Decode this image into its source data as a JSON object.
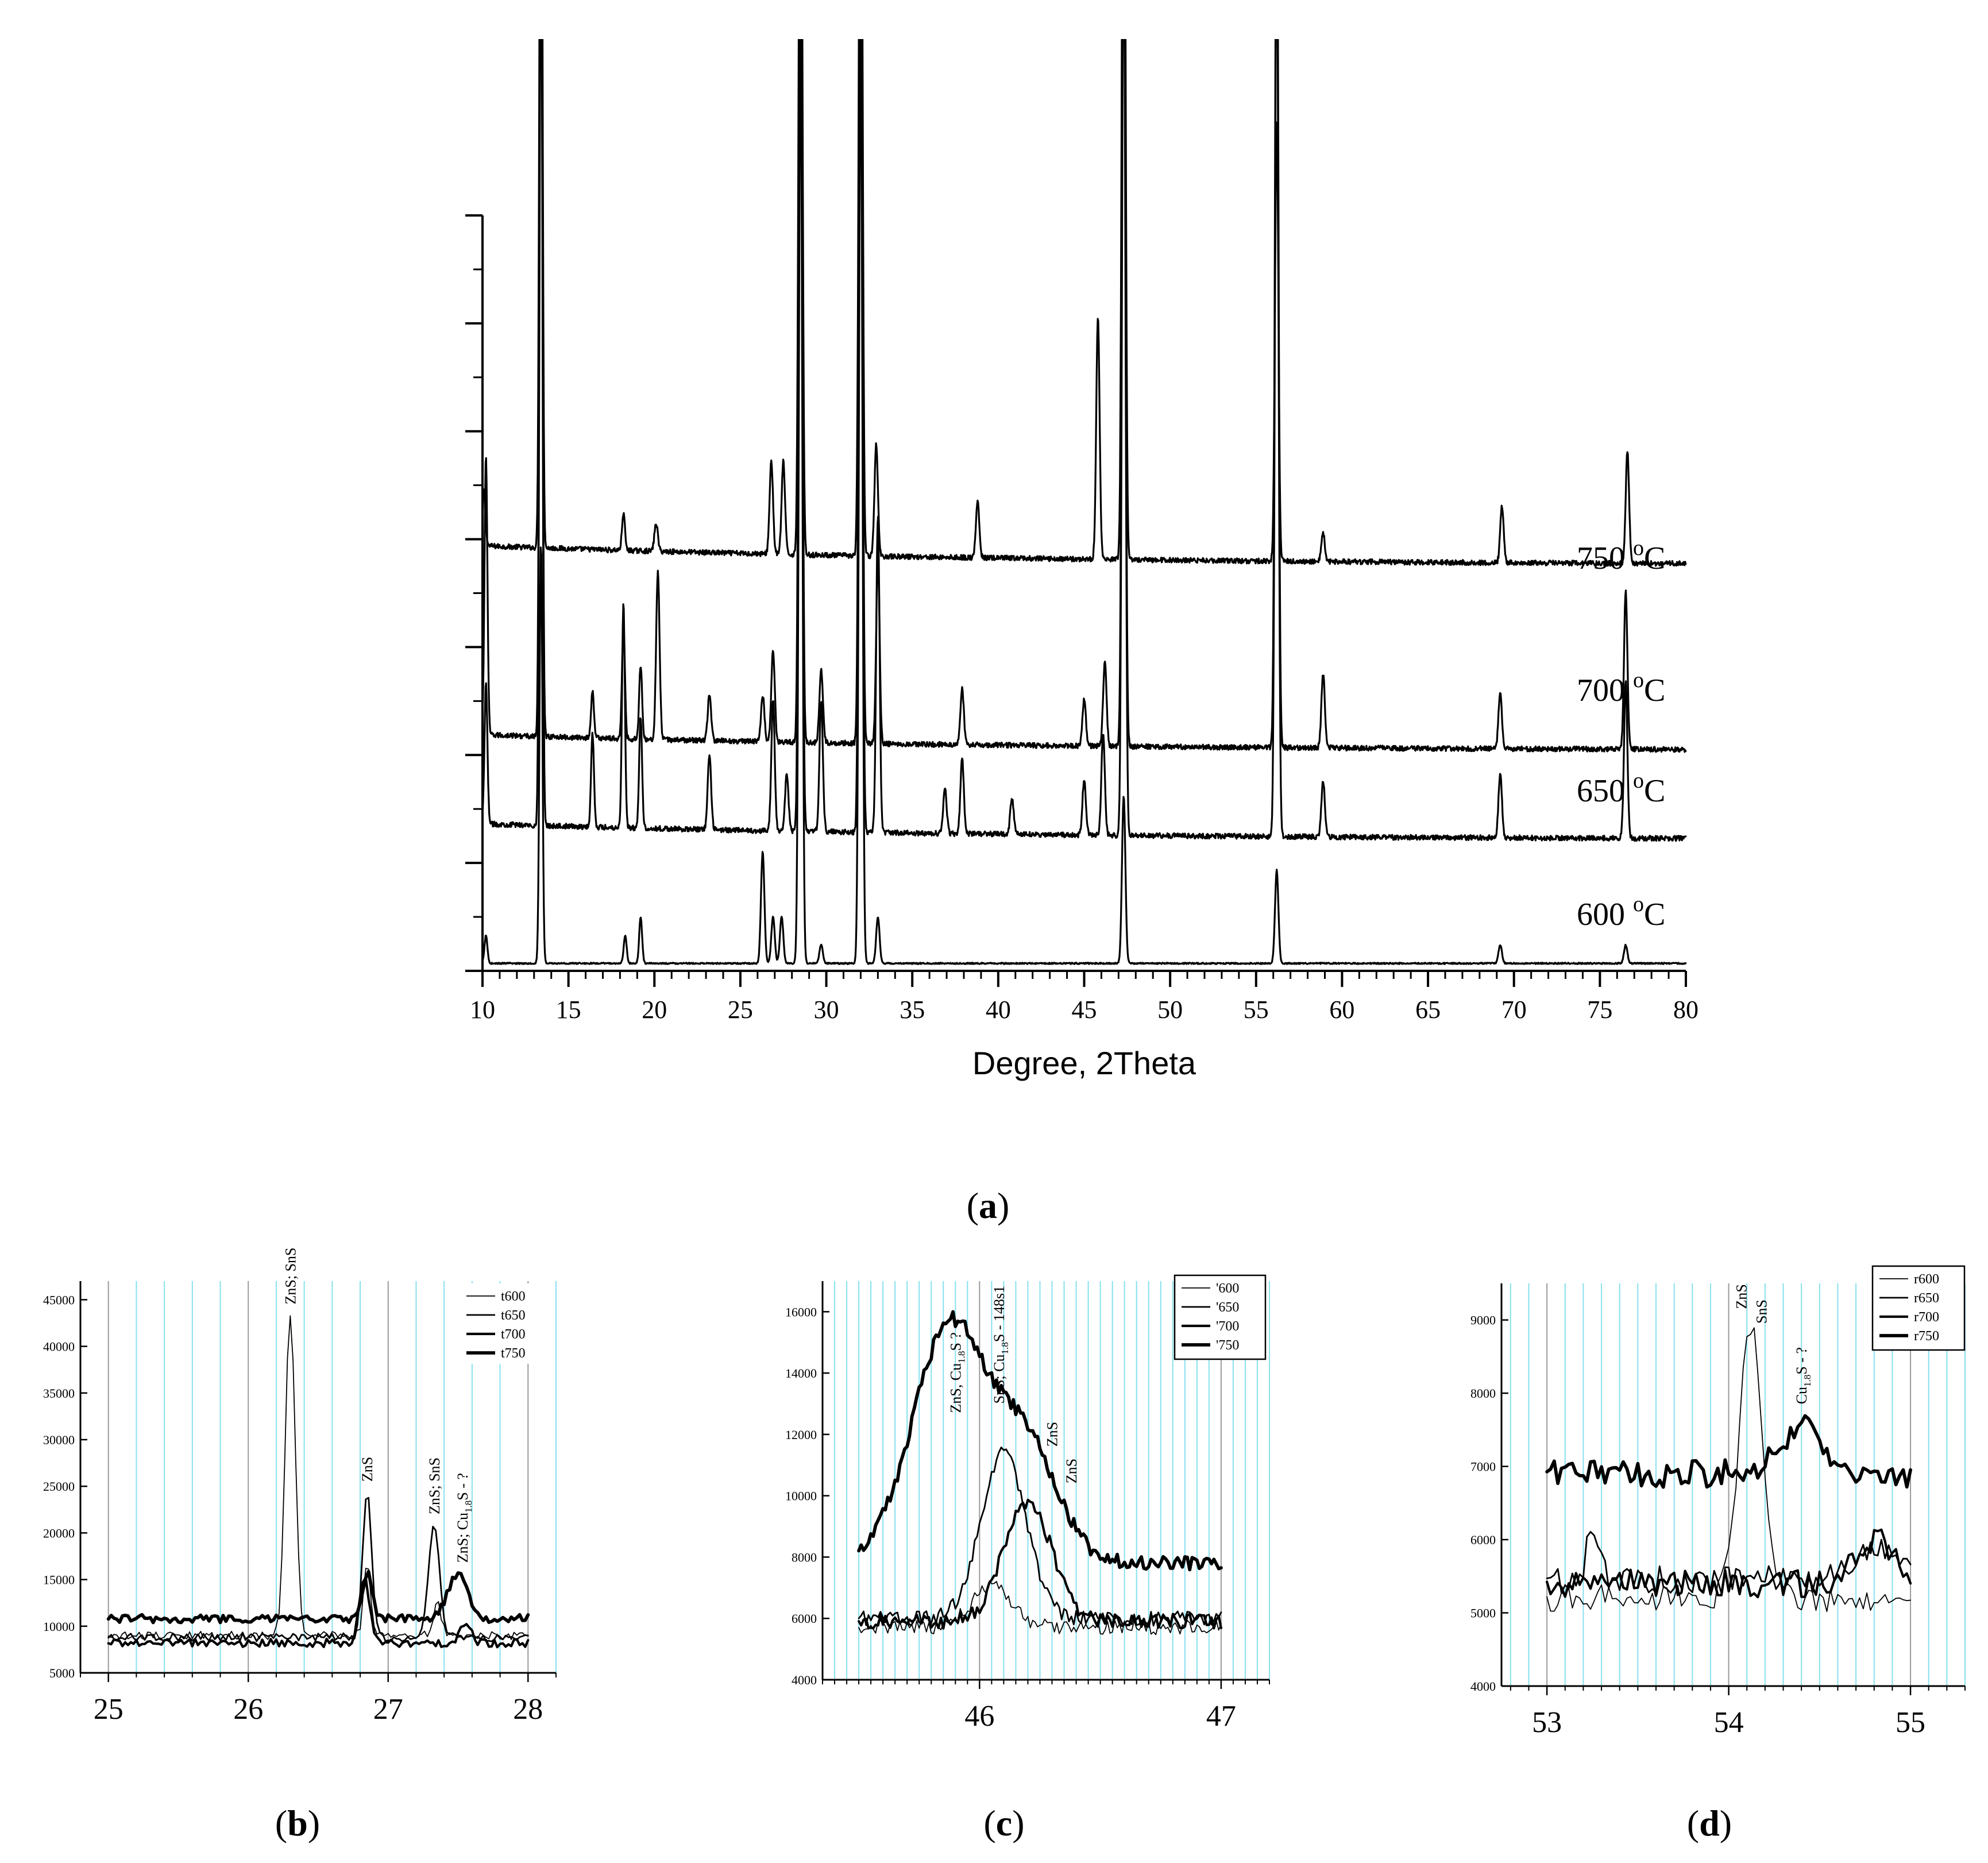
{
  "chart_data": [
    {
      "id": "a",
      "panel_label": "(a)",
      "type": "line",
      "xlabel": "Degree, 2Theta",
      "ylabel": "",
      "xlim": [
        10,
        80
      ],
      "x_ticks": [
        10,
        15,
        20,
        25,
        30,
        35,
        40,
        45,
        50,
        55,
        60,
        65,
        70,
        75,
        80
      ],
      "y_ticks_labeled": false,
      "series": [
        {
          "name": "750 °C",
          "label_main": "750 ",
          "label_sup": "o",
          "label_unit": "C",
          "baseline_start": 0.555,
          "baseline_end": 0.355,
          "peaks": [
            [
              10.1,
              0.06
            ],
            [
              13.4,
              1.0
            ],
            [
              18.2,
              0.04
            ],
            [
              20.1,
              0.03
            ],
            [
              26.8,
              0.1
            ],
            [
              27.5,
              0.1
            ],
            [
              28.5,
              1.0
            ],
            [
              32.0,
              1.0
            ],
            [
              32.9,
              0.12
            ],
            [
              38.8,
              0.06
            ],
            [
              45.8,
              0.26
            ],
            [
              47.3,
              1.02
            ],
            [
              56.2,
              0.47
            ],
            [
              58.9,
              0.03
            ],
            [
              69.3,
              0.06
            ],
            [
              76.6,
              0.12
            ]
          ]
        },
        {
          "name": "700 °C",
          "label_main": "700 ",
          "label_sup": "o",
          "label_unit": "C",
          "baseline_start": 0.375,
          "baseline_end": 0.2,
          "peaks": [
            [
              10.2,
              0.3
            ],
            [
              13.4,
              1.0
            ],
            [
              16.4,
              0.05
            ],
            [
              18.2,
              0.12
            ],
            [
              19.2,
              0.08
            ],
            [
              20.2,
              0.18
            ],
            [
              23.2,
              0.05
            ],
            [
              26.3,
              0.05
            ],
            [
              26.9,
              0.1
            ],
            [
              28.5,
              1.0
            ],
            [
              29.7,
              0.08
            ],
            [
              32.0,
              1.0
            ],
            [
              33.0,
              0.2
            ],
            [
              37.9,
              0.06
            ],
            [
              45.0,
              0.05
            ],
            [
              46.2,
              0.09
            ],
            [
              47.3,
              1.0
            ],
            [
              56.2,
              1.0
            ],
            [
              58.9,
              0.08
            ],
            [
              69.2,
              0.06
            ],
            [
              76.5,
              0.17
            ]
          ]
        },
        {
          "name": "650 °C",
          "label_main": "650 ",
          "label_sup": "o",
          "label_unit": "C",
          "baseline_start": 0.19,
          "baseline_end": 0.11,
          "peaks": [
            [
              10.2,
              0.15
            ],
            [
              13.4,
              1.0
            ],
            [
              16.4,
              0.1
            ],
            [
              18.2,
              0.24
            ],
            [
              19.2,
              0.12
            ],
            [
              23.2,
              0.08
            ],
            [
              26.9,
              0.14
            ],
            [
              27.7,
              0.06
            ],
            [
              28.5,
              1.0
            ],
            [
              29.7,
              0.14
            ],
            [
              32.0,
              1.0
            ],
            [
              33.0,
              0.34
            ],
            [
              36.9,
              0.05
            ],
            [
              37.9,
              0.08
            ],
            [
              40.8,
              0.04
            ],
            [
              45.0,
              0.06
            ],
            [
              46.1,
              0.11
            ],
            [
              47.3,
              1.0
            ],
            [
              56.2,
              1.0
            ],
            [
              58.9,
              0.06
            ],
            [
              69.2,
              0.07
            ],
            [
              76.5,
              0.17
            ]
          ]
        },
        {
          "name": "600 °C",
          "label_main": "600 ",
          "label_sup": "o",
          "label_unit": "C",
          "baseline_start": 0.0,
          "baseline_end": 0.0,
          "peaks": [
            [
              10.2,
              0.03
            ],
            [
              13.4,
              0.45
            ],
            [
              18.3,
              0.03
            ],
            [
              19.2,
              0.05
            ],
            [
              26.3,
              0.12
            ],
            [
              26.9,
              0.05
            ],
            [
              27.4,
              0.05
            ],
            [
              28.5,
              1.0
            ],
            [
              29.7,
              0.02
            ],
            [
              32.0,
              1.0
            ],
            [
              33.0,
              0.05
            ],
            [
              47.3,
              0.18
            ],
            [
              56.2,
              0.1
            ],
            [
              69.2,
              0.02
            ],
            [
              76.5,
              0.02
            ]
          ]
        }
      ]
    },
    {
      "id": "b",
      "panel_label": "(b)",
      "type": "line",
      "xlim": [
        24.8,
        28.2
      ],
      "ylim": [
        5000,
        47000
      ],
      "x_ticks": [
        25,
        26,
        27,
        28
      ],
      "y_ticks": [
        5000,
        10000,
        15000,
        20000,
        25000,
        30000,
        35000,
        40000,
        45000
      ],
      "legend": [
        "t600",
        "t650",
        "t700",
        "t750"
      ],
      "legend_position": "top-right",
      "annotations": [
        {
          "x": 26.3,
          "y": 44500,
          "parts": [
            [
              "ZnS; SnS",
              ""
            ]
          ]
        },
        {
          "x": 26.85,
          "y": 25500,
          "parts": [
            [
              "ZnS",
              ""
            ]
          ]
        },
        {
          "x": 27.33,
          "y": 22000,
          "parts": [
            [
              "ZnS; SnS",
              ""
            ]
          ]
        },
        {
          "x": 27.53,
          "y": 16800,
          "parts": [
            [
              "ZnS; Cu",
              ""
            ],
            [
              "1.8",
              "sub"
            ],
            [
              "S - ?",
              ""
            ]
          ]
        }
      ],
      "series": [
        {
          "name": "t600",
          "base": 9000,
          "peaks": [
            [
              26.3,
              34500,
              0.05
            ],
            [
              26.85,
              8000,
              0.035
            ],
            [
              27.35,
              3500,
              0.04
            ]
          ]
        },
        {
          "name": "t650",
          "base": 8800,
          "peaks": [
            [
              26.85,
              15500,
              0.045
            ],
            [
              27.33,
              12000,
              0.055
            ]
          ]
        },
        {
          "name": "t700",
          "base": 8200,
          "peaks": [
            [
              26.83,
              7000,
              0.05
            ],
            [
              27.55,
              2000,
              0.06
            ]
          ]
        },
        {
          "name": "t750",
          "base": 10800,
          "peaks": [
            [
              26.85,
              5000,
              0.05
            ],
            [
              27.5,
              4800,
              0.1
            ]
          ]
        }
      ]
    },
    {
      "id": "c",
      "panel_label": "(c)",
      "type": "line",
      "xlim": [
        45.35,
        47.2
      ],
      "ylim": [
        4000,
        17000
      ],
      "x_ticks": [
        46,
        47
      ],
      "y_ticks": [
        4000,
        6000,
        8000,
        10000,
        12000,
        14000,
        16000
      ],
      "legend": [
        "'600",
        "'650",
        "'700",
        "'750"
      ],
      "legend_position": "top-right",
      "annotations": [
        {
          "x": 45.9,
          "y": 12700,
          "parts": [
            [
              "ZnS, Cu",
              ""
            ],
            [
              "1.8",
              "sub"
            ],
            [
              "S ?",
              ""
            ]
          ]
        },
        {
          "x": 46.08,
          "y": 13000,
          "parts": [
            [
              "SnS; Cu",
              ""
            ],
            [
              "1.8",
              "sub"
            ],
            [
              "S - 148s1",
              ""
            ]
          ]
        },
        {
          "x": 46.3,
          "y": 11600,
          "parts": [
            [
              "ZnS",
              ""
            ]
          ]
        },
        {
          "x": 46.38,
          "y": 10400,
          "parts": [
            [
              "ZnS",
              ""
            ]
          ]
        }
      ],
      "series": [
        {
          "name": "'600",
          "base": 5700,
          "peaks": [
            [
              46.05,
              1300,
              0.12
            ]
          ]
        },
        {
          "name": "'650",
          "base": 6000,
          "peaks": [
            [
              46.1,
              5400,
              0.13
            ]
          ]
        },
        {
          "name": "'700",
          "base": 5900,
          "peaks": [
            [
              46.2,
              3900,
              0.14
            ]
          ]
        },
        {
          "name": "'750",
          "base": 7800,
          "peaks": [
            [
              45.88,
              7800,
              0.22
            ],
            [
              46.2,
              3600,
              0.18
            ]
          ]
        }
      ]
    },
    {
      "id": "d",
      "panel_label": "(d)",
      "type": "line",
      "xlim": [
        52.75,
        55.3
      ],
      "ylim": [
        4000,
        9500
      ],
      "x_ticks": [
        53,
        54,
        55
      ],
      "y_ticks": [
        4000,
        5000,
        6000,
        7000,
        8000,
        9000
      ],
      "legend": [
        "r600",
        "r650",
        "r700",
        "r750"
      ],
      "legend_position": "top-right",
      "annotations": [
        {
          "x": 54.07,
          "y": 9150,
          "parts": [
            [
              "ZnS",
              ""
            ]
          ]
        },
        {
          "x": 54.18,
          "y": 8950,
          "parts": [
            [
              "SnS",
              ""
            ]
          ]
        },
        {
          "x": 54.4,
          "y": 7850,
          "parts": [
            [
              "Cu",
              ""
            ],
            [
              "1.8",
              "sub"
            ],
            [
              "S - ?",
              ""
            ]
          ]
        }
      ],
      "series": [
        {
          "name": "r600",
          "base": 5200,
          "peaks": [
            [
              54.12,
              3700,
              0.09
            ]
          ]
        },
        {
          "name": "r650",
          "base": 5450,
          "peaks": [
            [
              53.25,
              600,
              0.05
            ],
            [
              54.8,
              500,
              0.15
            ]
          ]
        },
        {
          "name": "r700",
          "base": 5400,
          "peaks": [
            [
              54.8,
              600,
              0.15
            ]
          ]
        },
        {
          "name": "r750",
          "base": 6900,
          "peaks": [
            [
              54.4,
              700,
              0.15
            ]
          ]
        }
      ]
    }
  ]
}
